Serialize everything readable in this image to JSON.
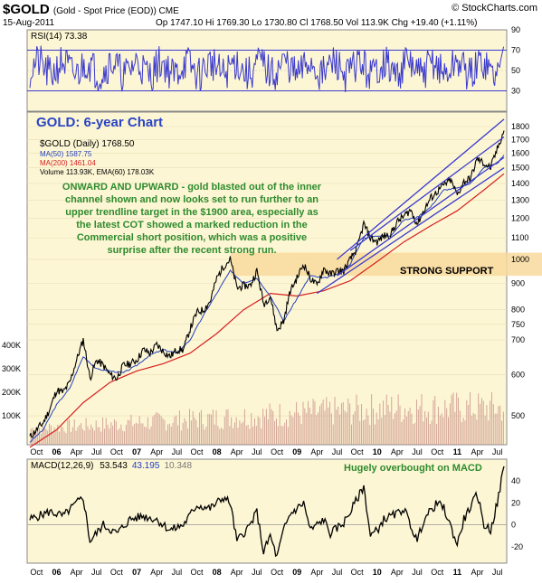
{
  "header": {
    "symbol": "$GOLD",
    "symbol_desc": "(Gold - Spot Price (EOD)) CME",
    "date": "15-Aug-2011",
    "quote": "Op 1747.10  Hi 1769.30  Lo 1730.80  Cl 1768.50  Vol 113.9K  Chg +19.40 (+1.11%)",
    "logo": "© StockCharts.com"
  },
  "colors": {
    "panel_bg": "#fdf6d4",
    "price": "#000000",
    "ma50": "#1f3fbf",
    "ma200": "#d42020",
    "channel": "#3a3acf",
    "annotation_text": "#2e8b2e",
    "chart_title": "#2a44c4",
    "support_band": "#f8d99c",
    "volume": "#c8908a"
  },
  "annotations": {
    "chart_title": "GOLD: 6-year Chart",
    "commentary": [
      "ONWARD AND UPWARD - gold blasted out of the inner",
      "channel shown and now looks set to run further to an",
      "upper trendline target in the $1900 area, especially as",
      "the latest COT showed a marked reduction in the",
      "Commercial short position, which was a positive",
      "surprise after the recent strong run."
    ],
    "support_label": "STRONG SUPPORT",
    "macd_note": "Hugely overbought on MACD"
  },
  "chart_data": [
    {
      "type": "line",
      "panel": "rsi",
      "legend": "RSI(14) 73.38",
      "y_ticks": [
        "90",
        "70",
        "50",
        "30"
      ],
      "ylim": [
        10,
        90
      ],
      "reference_lines": [
        70,
        30
      ],
      "last_value": 73.38
    },
    {
      "type": "line",
      "panel": "price",
      "scale": "log",
      "legend": [
        "$GOLD (Daily) 1768.50",
        "MA(50) 1587.75",
        "MA(200) 1461.04",
        "Volume 113.93K, EMA(60) 178.03K"
      ],
      "y_ticks": [
        "1800",
        "1700",
        "1600",
        "1500",
        "1400",
        "1300",
        "1200",
        "1100",
        "1000",
        "900",
        "800",
        "750",
        "700",
        "600",
        "500"
      ],
      "vol_ticks": [
        "400K",
        "300K",
        "200K",
        "100K"
      ],
      "x_labels": [
        "Oct",
        "06",
        "Apr",
        "Jul",
        "Oct",
        "07",
        "Apr",
        "Jul",
        "Oct",
        "08",
        "Apr",
        "Jul",
        "Oct",
        "09",
        "Apr",
        "Jul",
        "Oct",
        "10",
        "Apr",
        "Jul",
        "Oct",
        "11",
        "Apr",
        "Jul"
      ],
      "x_bold": [
        "06",
        "07",
        "08",
        "09",
        "10",
        "11"
      ],
      "x_range": [
        "2005-09",
        "2011-08"
      ],
      "series": [
        {
          "name": "$GOLD",
          "role": "price",
          "points": [
            [
              "2005-09",
              455
            ],
            [
              "2005-10",
              470
            ],
            [
              "2005-11",
              485
            ],
            [
              "2005-12",
              515
            ],
            [
              "2006-01",
              560
            ],
            [
              "2006-02",
              555
            ],
            [
              "2006-03",
              580
            ],
            [
              "2006-04",
              640
            ],
            [
              "2006-05",
              700
            ],
            [
              "2006-06",
              590
            ],
            [
              "2006-07",
              640
            ],
            [
              "2006-08",
              625
            ],
            [
              "2006-09",
              600
            ],
            [
              "2006-10",
              590
            ],
            [
              "2006-11",
              625
            ],
            [
              "2006-12",
              630
            ],
            [
              "2007-01",
              640
            ],
            [
              "2007-02",
              670
            ],
            [
              "2007-03",
              660
            ],
            [
              "2007-04",
              685
            ],
            [
              "2007-05",
              665
            ],
            [
              "2007-06",
              650
            ],
            [
              "2007-07",
              670
            ],
            [
              "2007-08",
              670
            ],
            [
              "2007-09",
              735
            ],
            [
              "2007-10",
              790
            ],
            [
              "2007-11",
              800
            ],
            [
              "2007-12",
              830
            ],
            [
              "2008-01",
              920
            ],
            [
              "2008-02",
              970
            ],
            [
              "2008-03",
              1000
            ],
            [
              "2008-04",
              880
            ],
            [
              "2008-05",
              890
            ],
            [
              "2008-06",
              890
            ],
            [
              "2008-07",
              950
            ],
            [
              "2008-08",
              820
            ],
            [
              "2008-09",
              850
            ],
            [
              "2008-10",
              730
            ],
            [
              "2008-11",
              760
            ],
            [
              "2008-12",
              870
            ],
            [
              "2009-01",
              920
            ],
            [
              "2009-02",
              980
            ],
            [
              "2009-03",
              920
            ],
            [
              "2009-04",
              890
            ],
            [
              "2009-05",
              960
            ],
            [
              "2009-06",
              935
            ],
            [
              "2009-07",
              950
            ],
            [
              "2009-08",
              950
            ],
            [
              "2009-09",
              1000
            ],
            [
              "2009-10",
              1050
            ],
            [
              "2009-11",
              1170
            ],
            [
              "2009-12",
              1100
            ],
            [
              "2010-01",
              1080
            ],
            [
              "2010-02",
              1110
            ],
            [
              "2010-03",
              1115
            ],
            [
              "2010-04",
              1180
            ],
            [
              "2010-05",
              1210
            ],
            [
              "2010-06",
              1245
            ],
            [
              "2010-07",
              1170
            ],
            [
              "2010-08",
              1240
            ],
            [
              "2010-09",
              1310
            ],
            [
              "2010-10",
              1350
            ],
            [
              "2010-11",
              1390
            ],
            [
              "2010-12",
              1420
            ],
            [
              "2011-01",
              1330
            ],
            [
              "2011-02",
              1410
            ],
            [
              "2011-03",
              1430
            ],
            [
              "2011-04",
              1560
            ],
            [
              "2011-05",
              1530
            ],
            [
              "2011-06",
              1500
            ],
            [
              "2011-07",
              1630
            ],
            [
              "2011-08",
              1768.5
            ]
          ]
        },
        {
          "name": "MA(50)",
          "role": "ma50",
          "points": [
            [
              "2005-09",
              445
            ],
            [
              "2005-11",
              470
            ],
            [
              "2006-01",
              525
            ],
            [
              "2006-03",
              565
            ],
            [
              "2006-05",
              650
            ],
            [
              "2006-07",
              615
            ],
            [
              "2006-09",
              610
            ],
            [
              "2006-11",
              605
            ],
            [
              "2007-01",
              625
            ],
            [
              "2007-03",
              655
            ],
            [
              "2007-05",
              670
            ],
            [
              "2007-07",
              660
            ],
            [
              "2007-09",
              700
            ],
            [
              "2007-11",
              780
            ],
            [
              "2008-01",
              860
            ],
            [
              "2008-03",
              950
            ],
            [
              "2008-05",
              900
            ],
            [
              "2008-07",
              920
            ],
            [
              "2008-09",
              850
            ],
            [
              "2008-11",
              760
            ],
            [
              "2009-01",
              840
            ],
            [
              "2009-03",
              930
            ],
            [
              "2009-05",
              920
            ],
            [
              "2009-07",
              935
            ],
            [
              "2009-09",
              980
            ],
            [
              "2009-11",
              1100
            ],
            [
              "2010-01",
              1110
            ],
            [
              "2010-03",
              1110
            ],
            [
              "2010-05",
              1190
            ],
            [
              "2010-07",
              1205
            ],
            [
              "2010-09",
              1260
            ],
            [
              "2010-11",
              1360
            ],
            [
              "2011-01",
              1370
            ],
            [
              "2011-03",
              1400
            ],
            [
              "2011-05",
              1500
            ],
            [
              "2011-07",
              1530
            ],
            [
              "2011-08",
              1587.75
            ]
          ]
        },
        {
          "name": "MA(200)",
          "role": "ma200",
          "points": [
            [
              "2005-09",
              435
            ],
            [
              "2006-01",
              470
            ],
            [
              "2006-05",
              530
            ],
            [
              "2006-09",
              580
            ],
            [
              "2007-01",
              610
            ],
            [
              "2007-05",
              630
            ],
            [
              "2007-09",
              660
            ],
            [
              "2008-01",
              720
            ],
            [
              "2008-05",
              800
            ],
            [
              "2008-09",
              860
            ],
            [
              "2009-01",
              850
            ],
            [
              "2009-05",
              870
            ],
            [
              "2009-09",
              910
            ],
            [
              "2010-01",
              990
            ],
            [
              "2010-05",
              1080
            ],
            [
              "2010-09",
              1160
            ],
            [
              "2011-01",
              1240
            ],
            [
              "2011-05",
              1360
            ],
            [
              "2011-08",
              1461.04
            ]
          ]
        }
      ],
      "trendlines": [
        {
          "role": "outer_upper",
          "from": [
            "2009-07",
            1000
          ],
          "to": [
            "2011-08",
            1860
          ]
        },
        {
          "role": "outer_lower",
          "from": [
            "2009-04",
            860
          ],
          "to": [
            "2011-08",
            1500
          ]
        },
        {
          "role": "inner_upper",
          "from": [
            "2009-09",
            1040
          ],
          "to": [
            "2011-08",
            1720
          ]
        },
        {
          "role": "inner_lower",
          "from": [
            "2009-07",
            930
          ],
          "to": [
            "2011-08",
            1570
          ]
        }
      ],
      "support_zone": [
        930,
        1030
      ]
    },
    {
      "type": "line",
      "panel": "macd",
      "legend": [
        "MACD(12,26,9)",
        "53.543",
        "43.195",
        "10.348"
      ],
      "y_ticks": [
        "40",
        "20",
        "0",
        "-20"
      ],
      "ylim": [
        -35,
        60
      ],
      "series": [
        {
          "name": "MACD",
          "points": [
            [
              "2005-09",
              5
            ],
            [
              "2005-12",
              12
            ],
            [
              "2006-02",
              8
            ],
            [
              "2006-04",
              20
            ],
            [
              "2006-05",
              25
            ],
            [
              "2006-06",
              -15
            ],
            [
              "2006-08",
              0
            ],
            [
              "2006-10",
              -8
            ],
            [
              "2006-12",
              5
            ],
            [
              "2007-02",
              8
            ],
            [
              "2007-04",
              5
            ],
            [
              "2007-06",
              -5
            ],
            [
              "2007-08",
              0
            ],
            [
              "2007-10",
              18
            ],
            [
              "2007-12",
              15
            ],
            [
              "2008-02",
              25
            ],
            [
              "2008-03",
              20
            ],
            [
              "2008-04",
              -15
            ],
            [
              "2008-06",
              0
            ],
            [
              "2008-07",
              12
            ],
            [
              "2008-08",
              -25
            ],
            [
              "2008-09",
              -10
            ],
            [
              "2008-10",
              -30
            ],
            [
              "2008-11",
              -5
            ],
            [
              "2008-12",
              10
            ],
            [
              "2009-02",
              20
            ],
            [
              "2009-03",
              -5
            ],
            [
              "2009-05",
              5
            ],
            [
              "2009-06",
              -8
            ],
            [
              "2009-08",
              2
            ],
            [
              "2009-09",
              12
            ],
            [
              "2009-11",
              35
            ],
            [
              "2009-12",
              -10
            ],
            [
              "2010-01",
              -5
            ],
            [
              "2010-02",
              5
            ],
            [
              "2010-04",
              10
            ],
            [
              "2010-05",
              15
            ],
            [
              "2010-07",
              -15
            ],
            [
              "2010-08",
              5
            ],
            [
              "2010-10",
              20
            ],
            [
              "2010-11",
              15
            ],
            [
              "2011-01",
              -18
            ],
            [
              "2011-02",
              5
            ],
            [
              "2011-04",
              28
            ],
            [
              "2011-05",
              0
            ],
            [
              "2011-06",
              -5
            ],
            [
              "2011-07",
              20
            ],
            [
              "2011-08",
              53.5
            ]
          ]
        }
      ]
    }
  ]
}
